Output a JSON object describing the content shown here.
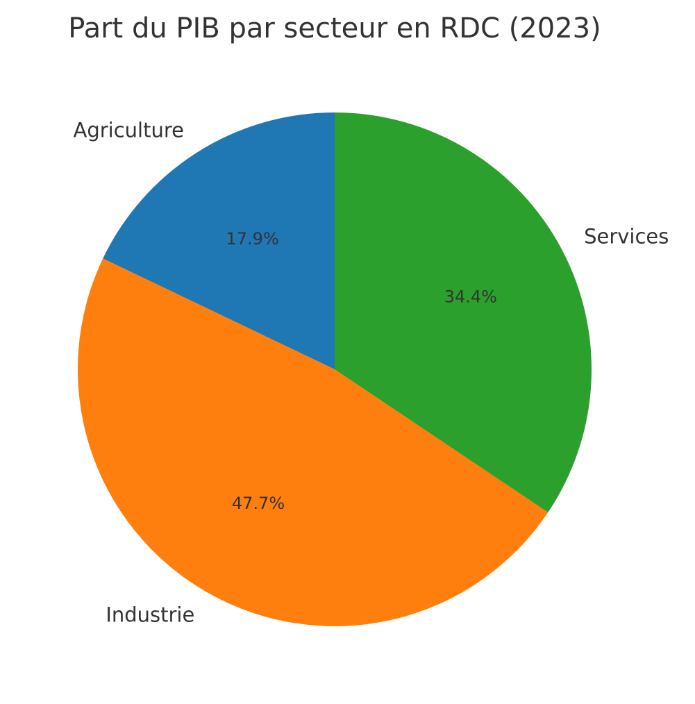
{
  "chart_data": {
    "type": "pie",
    "title": "Part du PIB par secteur en RDC (2023)",
    "categories": [
      "Agriculture",
      "Industrie",
      "Services"
    ],
    "values": [
      17.9,
      47.7,
      34.4
    ],
    "labels_pct": [
      "17.9%",
      "47.7%",
      "34.4%"
    ],
    "colors": [
      "#1f77b4",
      "#ff7f0e",
      "#2ca02c"
    ],
    "start_angle": 90,
    "direction": "counterclockwise",
    "legend": "none"
  }
}
